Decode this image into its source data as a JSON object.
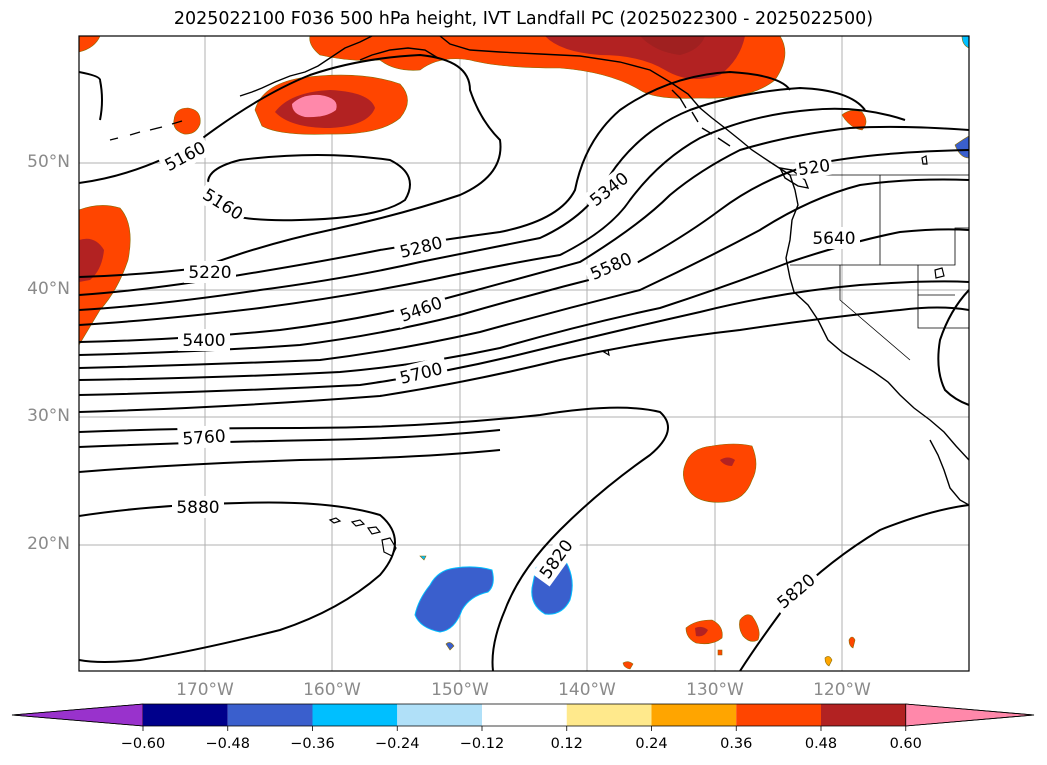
{
  "title": "2025022100 F036 500 hPa height, IVT Landfall PC (2025022300 - 2025022500)",
  "lat_labels": [
    "50°N",
    "40°N",
    "30°N",
    "20°N"
  ],
  "lon_labels": [
    "170°W",
    "160°W",
    "150°W",
    "140°W",
    "130°W",
    "120°W"
  ],
  "contour_labels": [
    "5160",
    "5160",
    "5220",
    "5280",
    "5340",
    "5400",
    "5460",
    "5580",
    "5640",
    "5700",
    "5760",
    "5880",
    "5820",
    "5820",
    "520"
  ],
  "colorbar": {
    "ticks": [
      "−0.60",
      "−0.48",
      "−0.36",
      "−0.24",
      "−0.12",
      "0.12",
      "0.24",
      "0.36",
      "0.48",
      "0.60"
    ],
    "colors": [
      "#9932cc",
      "#00008b",
      "#3a5fcd",
      "#00bfff",
      "#b0e0f8",
      "#ffffff",
      "#ffe98c",
      "#ffa500",
      "#ff4500",
      "#b22222",
      "#ff88aa"
    ]
  }
}
